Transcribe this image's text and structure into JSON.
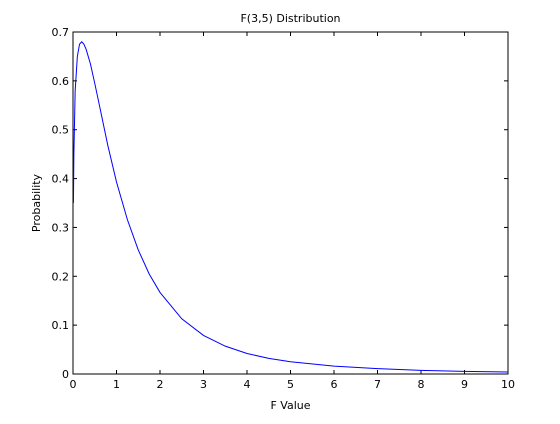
{
  "chart_data": {
    "type": "line",
    "title": "F(3,5) Distribution",
    "xlabel": "F Value",
    "ylabel": "Probability",
    "xlim": [
      0,
      10
    ],
    "ylim": [
      0,
      0.7
    ],
    "x_ticks": [
      "0",
      "1",
      "2",
      "3",
      "4",
      "5",
      "6",
      "7",
      "8",
      "9",
      "10"
    ],
    "y_ticks": [
      "0",
      "0.1",
      "0.2",
      "0.3",
      "0.4",
      "0.5",
      "0.6",
      "0.7"
    ],
    "grid": false,
    "legend": "none",
    "series": [
      {
        "color": "#0000ff",
        "x": [
          0.01,
          0.02,
          0.05,
          0.1,
          0.15,
          0.2,
          0.25,
          0.3,
          0.4,
          0.5,
          0.6,
          0.8,
          1.0,
          1.25,
          1.5,
          1.75,
          2.0,
          2.5,
          3.0,
          3.5,
          4.0,
          4.5,
          5.0,
          6.0,
          7.0,
          8.0,
          9.0,
          10.0
        ],
        "y": [
          0.35,
          0.45,
          0.58,
          0.65,
          0.675,
          0.68,
          0.675,
          0.665,
          0.635,
          0.595,
          0.553,
          0.468,
          0.393,
          0.316,
          0.254,
          0.205,
          0.167,
          0.113,
          0.079,
          0.057,
          0.042,
          0.032,
          0.025,
          0.016,
          0.011,
          0.0075,
          0.0054,
          0.004
        ]
      }
    ]
  }
}
